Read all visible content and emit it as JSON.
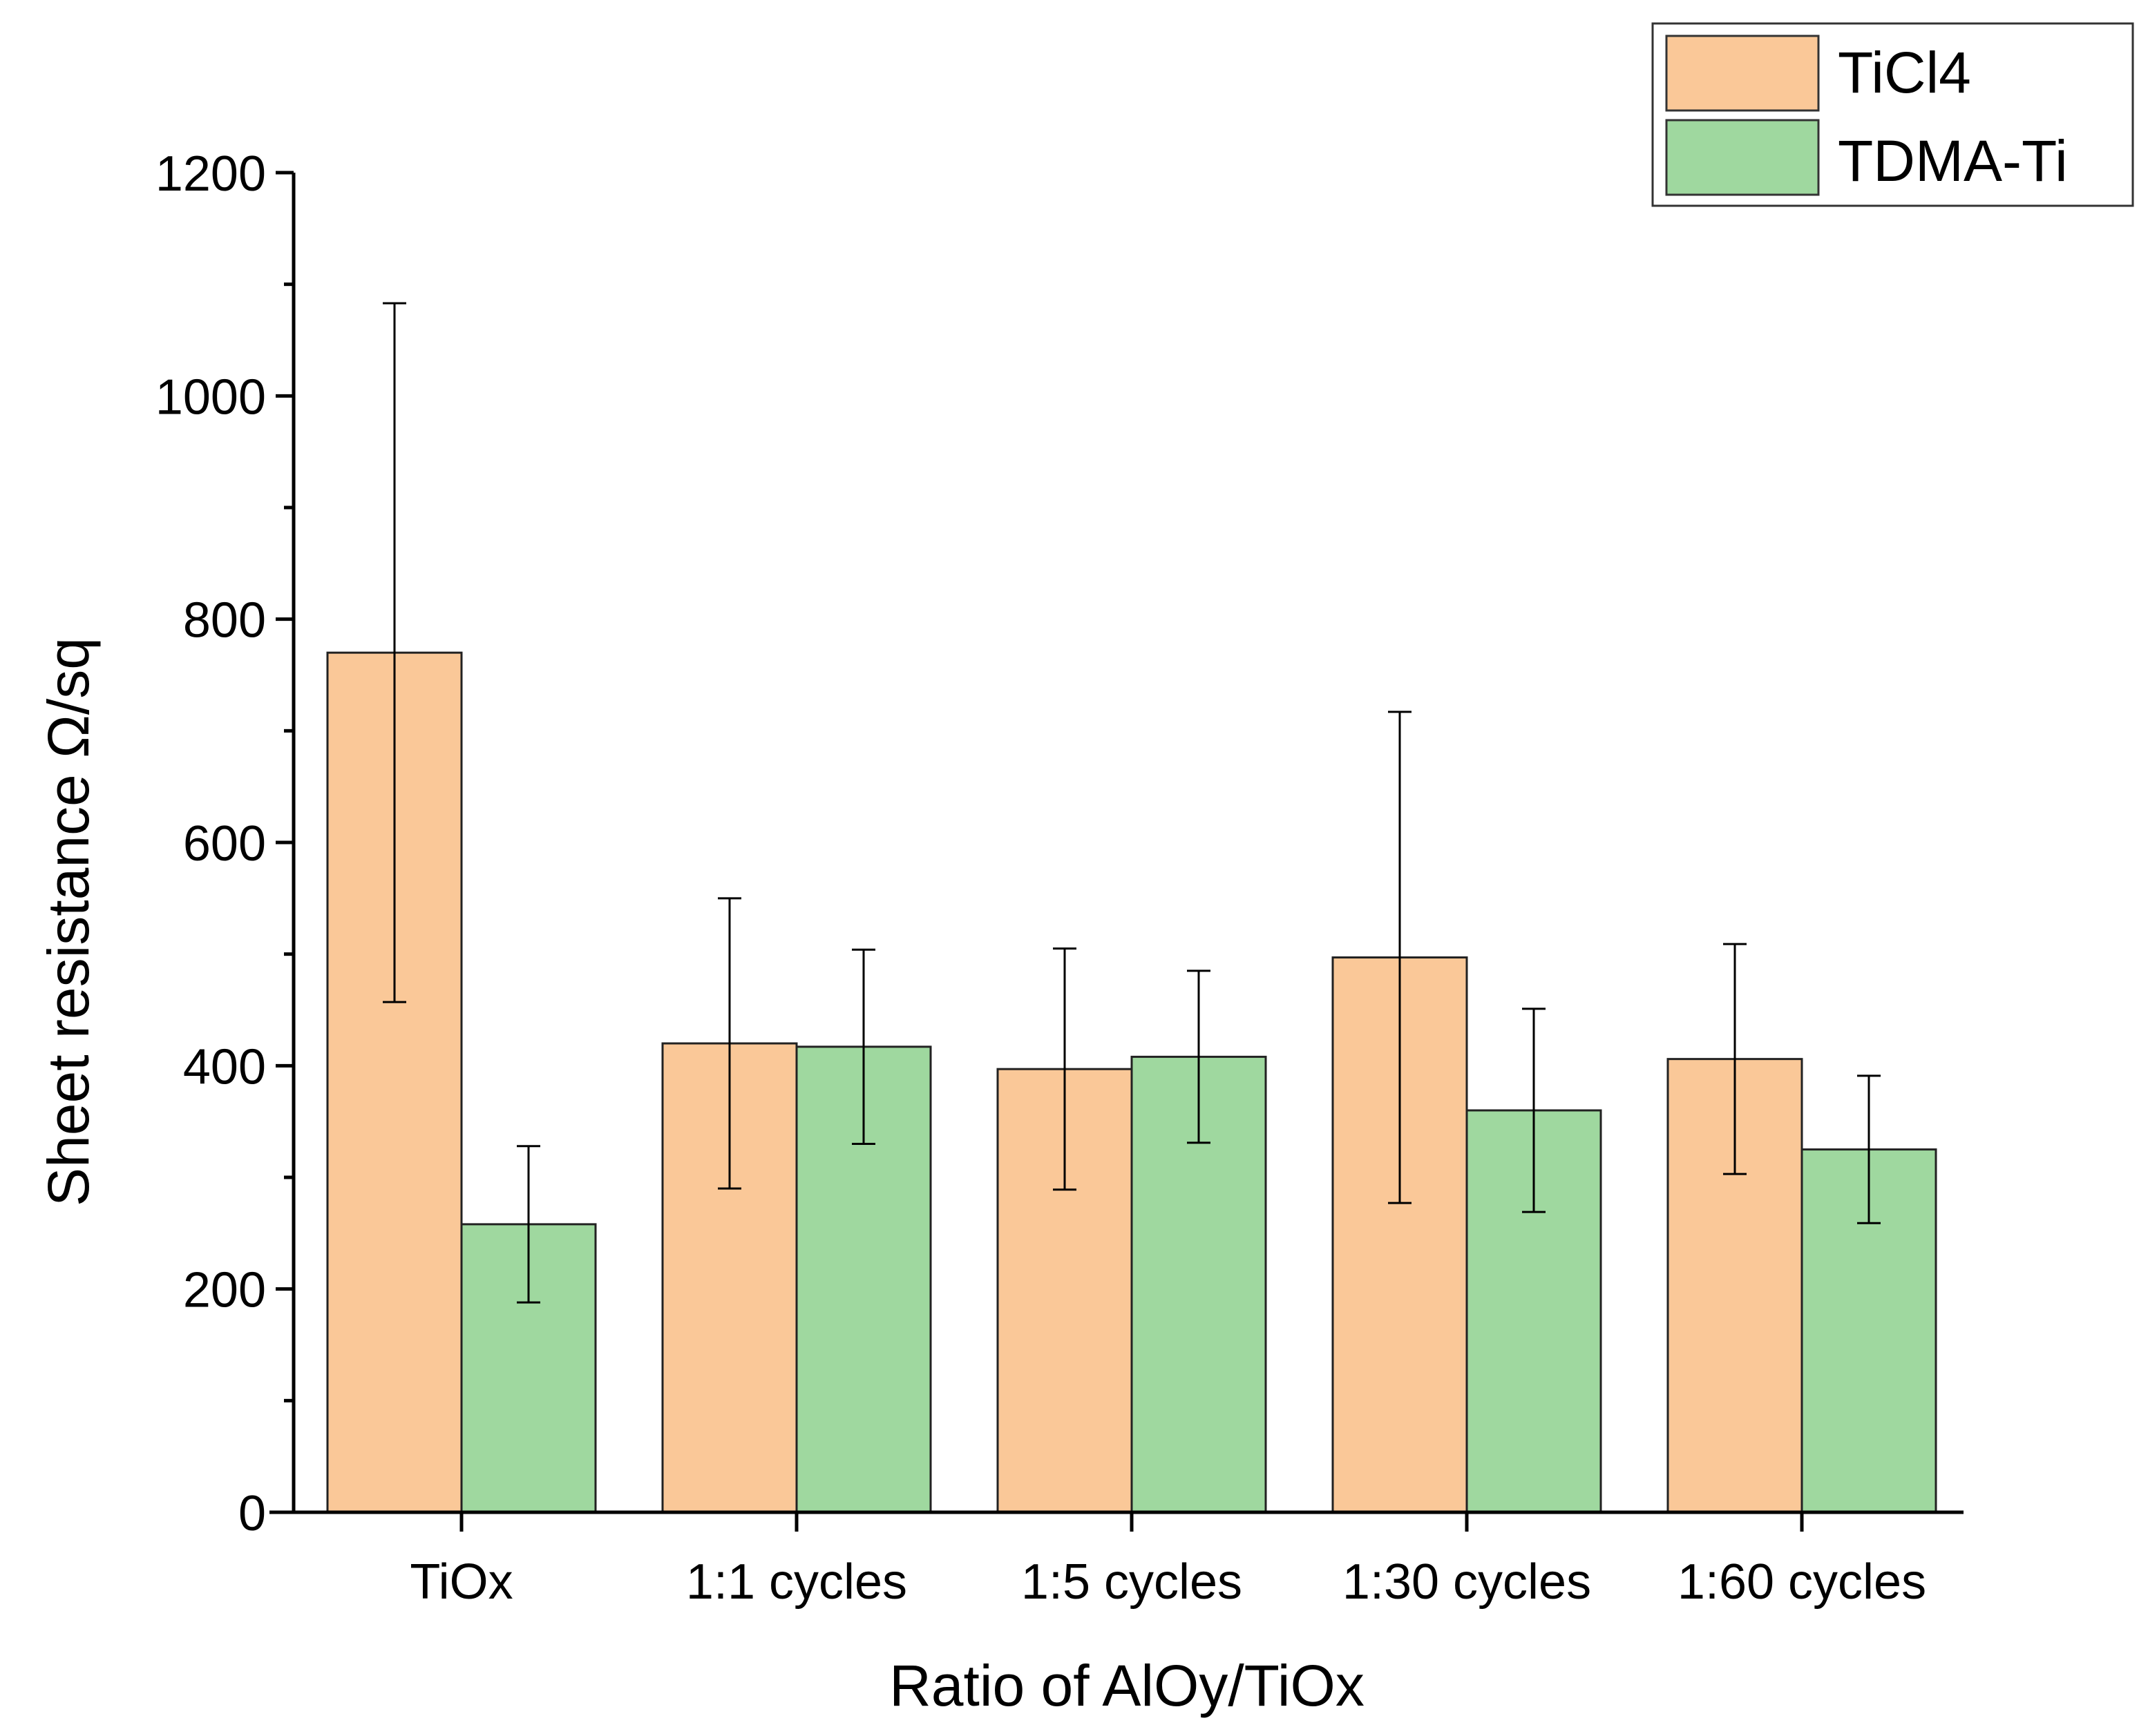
{
  "chart_data": {
    "type": "bar",
    "title": "",
    "xlabel": "Ratio of AlOy/TiOx",
    "ylabel": "Sheet resistance Ω/sq",
    "categories": [
      "TiOx",
      "1:1 cycles",
      "1:5 cycles",
      "1:30 cycles",
      "1:60 cycles"
    ],
    "series": [
      {
        "name": "TiCl4",
        "color": "#FAC898",
        "values": [
          770,
          420,
          397,
          497,
          406
        ],
        "error": [
          313,
          130,
          108,
          220,
          103
        ]
      },
      {
        "name": "TDMA-Ti",
        "color": "#9FD89F",
        "values": [
          258,
          417,
          408,
          360,
          325
        ],
        "error": [
          70,
          87,
          77,
          91,
          66
        ]
      }
    ],
    "ylim": [
      0,
      1200
    ],
    "yticks": [
      0,
      200,
      400,
      600,
      800,
      1000,
      1200
    ],
    "grid": false,
    "legend_position": "top-right"
  }
}
